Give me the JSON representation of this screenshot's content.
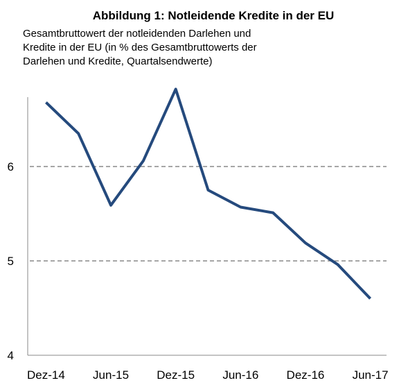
{
  "chart_data": {
    "type": "line",
    "title": "Abbildung 1:  Notleidende Kredite in der EU",
    "subtitle": [
      "Gesamtbruttowert der notleidenden Darlehen und",
      "Kredite in der EU (in % des Gesamtbruttowerts der",
      "Darlehen und Kredite, Quartalsendwerte)"
    ],
    "categories": [
      "Dez-14",
      null,
      "Jun-15",
      null,
      "Dez-15",
      null,
      "Jun-16",
      null,
      "Dez-16",
      null,
      "Jun-17"
    ],
    "series": [
      {
        "name": "Notleidende Kredite",
        "color": "#254a7d",
        "values": [
          6.68,
          6.35,
          5.59,
          6.06,
          6.82,
          5.75,
          5.57,
          5.51,
          5.19,
          4.96,
          4.6
        ]
      }
    ],
    "ylim": [
      4,
      7
    ],
    "yticks": [
      4,
      5,
      6
    ],
    "grid": true
  }
}
